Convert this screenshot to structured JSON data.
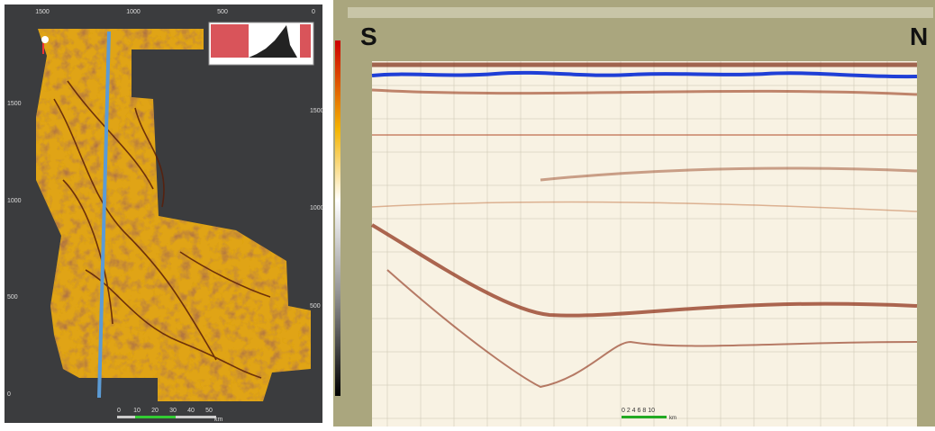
{
  "left_panel": {
    "top_axis": [
      "1500",
      "1000",
      "500",
      "0"
    ],
    "left_axis": [
      "1500",
      "1000",
      "500",
      "0"
    ],
    "right_axis": [
      "1500",
      "1000",
      "500"
    ],
    "scale_bar": [
      "0",
      "10",
      "20",
      "30",
      "40",
      "50"
    ],
    "scale_unit": "km"
  },
  "right_panel": {
    "left_label": "S",
    "right_label": "N",
    "scale_bar": "0 2 4 6 8 10",
    "scale_unit": "km"
  }
}
